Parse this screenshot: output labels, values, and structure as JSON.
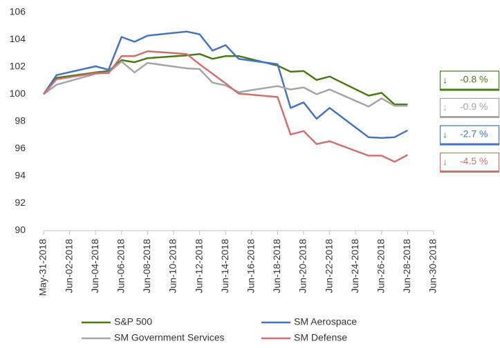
{
  "chart_data": {
    "type": "line",
    "x": [
      "May-31-2018",
      "Jun-01-2018",
      "Jun-04-2018",
      "Jun-05-2018",
      "Jun-06-2018",
      "Jun-07-2018",
      "Jun-08-2018",
      "Jun-11-2018",
      "Jun-12-2018",
      "Jun-13-2018",
      "Jun-14-2018",
      "Jun-15-2018",
      "Jun-18-2018",
      "Jun-19-2018",
      "Jun-20-2018",
      "Jun-21-2018",
      "Jun-22-2018",
      "Jun-25-2018",
      "Jun-26-2018",
      "Jun-27-2018",
      "Jun-28-2018"
    ],
    "series": [
      {
        "name": "S&P 500",
        "color": "#467a13",
        "values": [
          100,
          101.2,
          101.6,
          101.7,
          102.5,
          102.35,
          102.65,
          102.85,
          102.95,
          102.6,
          102.8,
          102.8,
          102.1,
          101.65,
          101.7,
          101.05,
          101.3,
          99.9,
          100.1,
          99.25,
          99.25
        ]
      },
      {
        "name": "SM Aerospace",
        "color": "#4472c4",
        "values": [
          100,
          101.4,
          102.05,
          101.8,
          104.2,
          103.85,
          104.3,
          104.6,
          104.4,
          103.2,
          103.6,
          102.6,
          102.2,
          99.0,
          99.4,
          98.2,
          99.0,
          96.85,
          96.8,
          96.85,
          97.35
        ]
      },
      {
        "name": "SM Government Services",
        "color": "#a5a5a5",
        "values": [
          100,
          100.7,
          101.5,
          101.6,
          102.4,
          101.6,
          102.3,
          101.9,
          101.85,
          100.85,
          100.65,
          100.15,
          100.6,
          100.35,
          100.5,
          100.0,
          100.35,
          99.1,
          99.7,
          99.15,
          99.15
        ]
      },
      {
        "name": "SM Defense",
        "color": "#d0706e",
        "values": [
          100,
          101.1,
          101.55,
          101.55,
          102.8,
          102.8,
          103.15,
          102.95,
          102.2,
          101.5,
          100.8,
          100.05,
          99.8,
          97.05,
          97.3,
          96.35,
          96.55,
          95.5,
          95.5,
          95.05,
          95.55
        ]
      }
    ],
    "xlim": [
      "May-31-2018",
      "Jun-30-2018"
    ],
    "xticks": [
      "May-31-2018",
      "Jun-02-2018",
      "Jun-04-2018",
      "Jun-06-2018",
      "Jun-08-2018",
      "Jun-10-2018",
      "Jun-12-2018",
      "Jun-14-2018",
      "Jun-16-2018",
      "Jun-18-2018",
      "Jun-20-2018",
      "Jun-22-2018",
      "Jun-24-2018",
      "Jun-26-2018",
      "Jun-28-2018",
      "Jun-30-2018"
    ],
    "ylim": [
      90,
      106
    ],
    "yticks": [
      90,
      92,
      94,
      96,
      98,
      100,
      102,
      104,
      106
    ],
    "annotations": [
      {
        "arrow": "↓",
        "text": "-0.8 %",
        "color": "#467a13"
      },
      {
        "arrow": "↓",
        "text": "-0.9 %",
        "color": "#a5a5a5"
      },
      {
        "arrow": "↓",
        "text": "-2.7 %",
        "color": "#4472c4"
      },
      {
        "arrow": "↓",
        "text": "-4.5 %",
        "color": "#d0706e"
      }
    ]
  }
}
